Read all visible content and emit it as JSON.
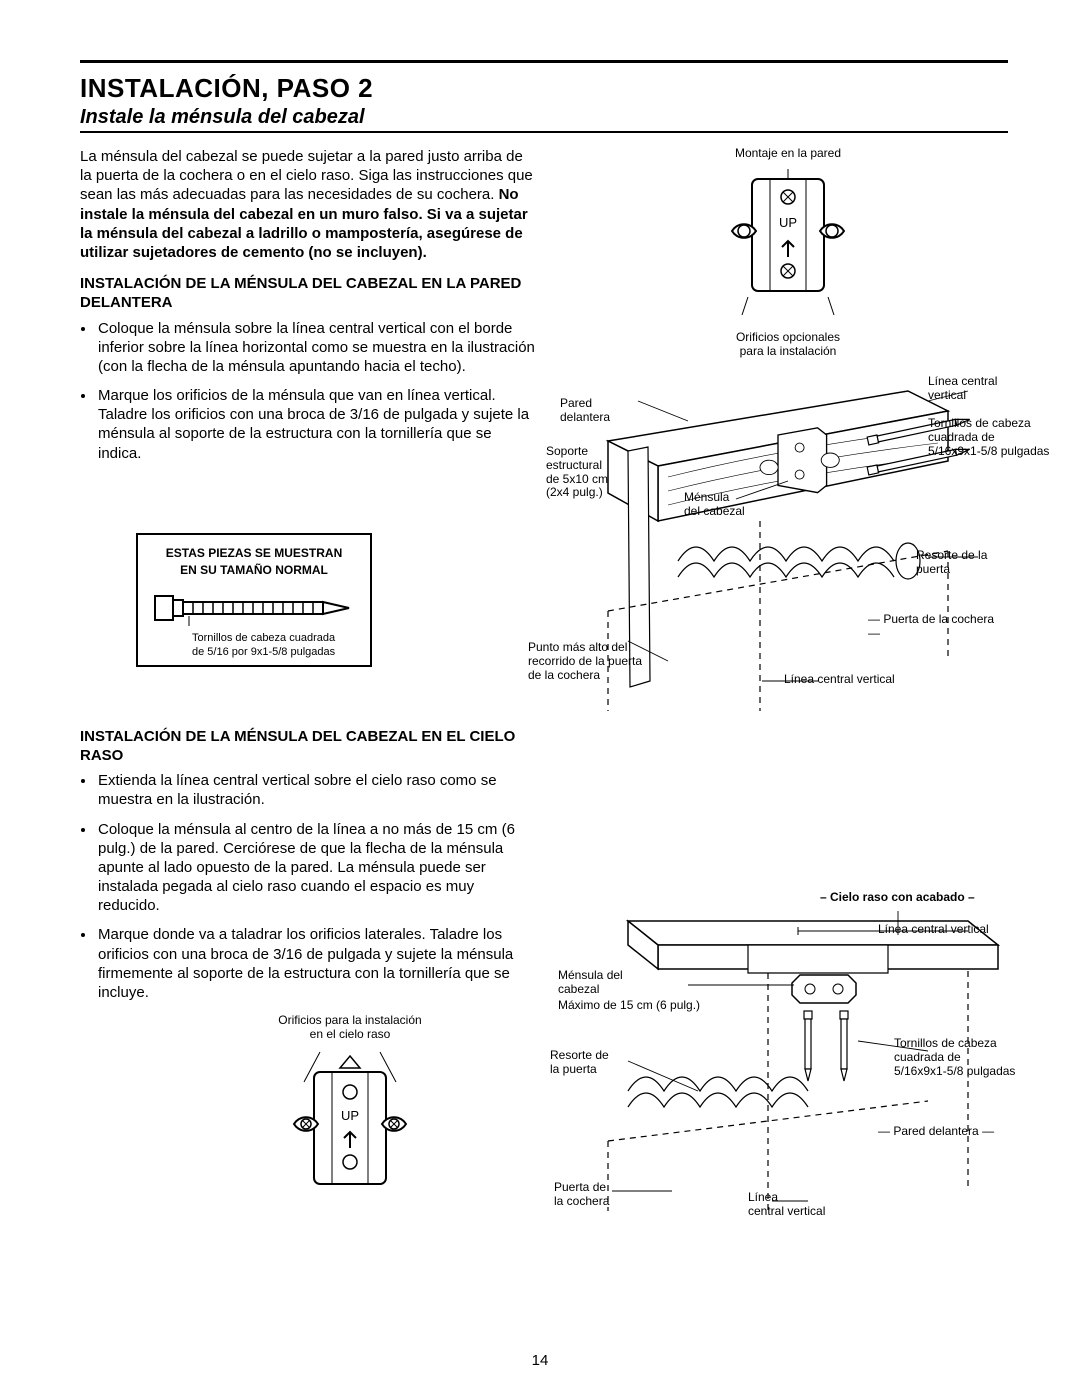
{
  "page": {
    "title": "INSTALACIÓN, PASO 2",
    "subtitle": "Instale la ménsula del cabezal",
    "page_number": "14"
  },
  "intro": {
    "text_before_bold": "La ménsula del cabezal se puede sujetar a la pared justo arriba de la puerta de la cochera o en el cielo raso. Siga las instrucciones que sean las más adecuadas para las necesidades de su cochera. ",
    "bold": "No instale la ménsula del cabezal en un muro falso. Si va a sujetar la ménsula del cabezal a ladrillo o mampostería, asegúrese de utilizar sujetadores de cemento (no se incluyen)."
  },
  "section1": {
    "heading": "INSTALACIÓN DE LA MÉNSULA DEL CABEZAL EN LA PARED DELANTERA",
    "bullets": [
      "Coloque la ménsula sobre la línea central vertical con el borde inferior sobre la línea horizontal como se muestra en la ilustración (con la flecha de la ménsula apuntando hacia el techo).",
      "Marque los orificios de la ménsula que van en línea vertical. Taladre los orificios con una broca de 3/16 de pulgada y sujete la ménsula al soporte de la estructura con la tornillería que se indica."
    ]
  },
  "parts_box": {
    "heading_l1": "ESTAS PIEZAS SE MUESTRAN",
    "heading_l2": "EN SU TAMAÑO NORMAL",
    "caption_l1": "Tornillos de cabeza cuadrada",
    "caption_l2": "de 5/16 por 9x1-5/8 pulgadas"
  },
  "section2": {
    "heading": "INSTALACIÓN DE LA MÉNSULA DEL CABEZAL EN EL CIELO RASO",
    "bullets": [
      "Extienda la línea central vertical sobre el cielo raso como se muestra en la ilustración.",
      "Coloque la ménsula al centro de la línea a no más de 15 cm (6 pulg.) de la pared. Cerciórese de que la flecha de la ménsula apunte al lado opuesto de la pared. La ménsula puede ser instalada pegada al cielo raso cuando el espacio es muy reducido.",
      "Marque donde va a taladrar los orificios laterales. Taladre los orificios con una broca de 3/16 de pulgada y sujete la ménsula firmemente al soporte de la estructura con la tornillería que se incluye."
    ]
  },
  "bracket_mini_top": {
    "top_label": "Montaje en la pared",
    "up": "UP",
    "bottom_l1": "Orificios opcionales",
    "bottom_l2": "para la instalación"
  },
  "bracket_mini_bottom": {
    "top_l1": "Orificios para la instalación",
    "top_l2": "en el cielo raso",
    "up": "UP"
  },
  "fig1": {
    "linea_central_vertical": "Línea central\nvertical",
    "tornillos": "Tornillos de cabeza\ncuadrada de\n5/16x9x1-5/8 pulgadas",
    "pared_delantera": "Pared\ndelantera",
    "soporte": "Soporte\nestructural\nde 5x10 cm\n(2x4 pulg.)",
    "mensula": "Ménsula\ndel cabezal",
    "resorte": "Resorte de la puerta",
    "puerta": "— Puerta de la cochera —",
    "linea_cv": "Línea central vertical",
    "punto": "Punto más alto del\nrecorrido de la puerta\nde la cochera"
  },
  "fig2": {
    "cielo": "– Cielo raso con acabado –",
    "linea_cv_top": "Línea central vertical",
    "mensula": "Ménsula del\ncabezal",
    "maximo": "Máximo de 15 cm (6 pulg.)",
    "resorte": "Resorte de\nla puerta",
    "tornillos": "Tornillos de cabeza\ncuadrada de\n5/16x9x1-5/8 pulgadas",
    "pared": "— Pared delantera —",
    "puerta": "Puerta de\nla cochera",
    "linea_cv_bot": "Línea\ncentral vertical"
  }
}
